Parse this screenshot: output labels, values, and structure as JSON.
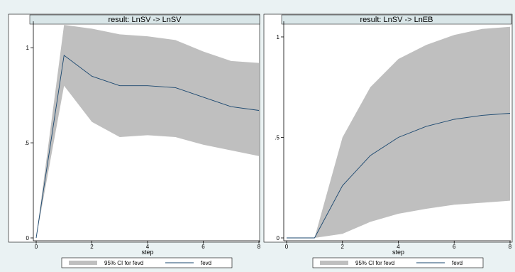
{
  "chart_data": [
    {
      "type": "area",
      "title": "result: LnSV -> LnSV",
      "xlabel": "step",
      "ylabel": "",
      "xlim": [
        0,
        8
      ],
      "ylim": [
        0,
        1.12
      ],
      "x_ticks": [
        "0",
        "2",
        "4",
        "6",
        "8"
      ],
      "y_ticks": [
        "0",
        ".5",
        "1"
      ],
      "x": [
        0,
        1,
        2,
        3,
        4,
        5,
        6,
        7,
        8
      ],
      "series": [
        {
          "name": "95% CI for fevd",
          "lower": [
            0,
            0.8,
            0.61,
            0.53,
            0.54,
            0.53,
            0.49,
            0.46,
            0.43
          ],
          "upper": [
            0,
            1.12,
            1.1,
            1.07,
            1.06,
            1.04,
            0.98,
            0.93,
            0.92
          ]
        },
        {
          "name": "fevd",
          "values": [
            0,
            0.96,
            0.85,
            0.8,
            0.8,
            0.79,
            0.74,
            0.69,
            0.67
          ]
        }
      ],
      "legend": {
        "position": "bottom",
        "entries": [
          "95% CI for fevd",
          "fevd"
        ]
      },
      "grid": false
    },
    {
      "type": "area",
      "title": "result: LnSV -> LnEB",
      "xlabel": "step",
      "ylabel": "",
      "xlim": [
        0,
        8
      ],
      "ylim": [
        0,
        1.06
      ],
      "x_ticks": [
        "0",
        "2",
        "4",
        "6",
        "8"
      ],
      "y_ticks": [
        "0",
        ".5",
        "1"
      ],
      "x": [
        0,
        1,
        2,
        3,
        4,
        5,
        6,
        7,
        8
      ],
      "series": [
        {
          "name": "95% CI for fevd",
          "lower": [
            0,
            0,
            0.02,
            0.08,
            0.12,
            0.145,
            0.165,
            0.175,
            0.185
          ],
          "upper": [
            0,
            0,
            0.5,
            0.75,
            0.89,
            0.96,
            1.01,
            1.04,
            1.05
          ]
        },
        {
          "name": "fevd",
          "values": [
            0,
            0,
            0.26,
            0.41,
            0.5,
            0.555,
            0.59,
            0.61,
            0.62
          ]
        }
      ],
      "legend": {
        "position": "bottom",
        "entries": [
          "95% CI for fevd",
          "fevd"
        ]
      },
      "grid": false
    }
  ],
  "colors": {
    "background": "#eaf2f3",
    "plot_bg": "#ffffff",
    "title_bar": "#d9e6e8",
    "ci_fill": "#bfbfbf",
    "line": "#1a476f",
    "axis": "#000000"
  }
}
